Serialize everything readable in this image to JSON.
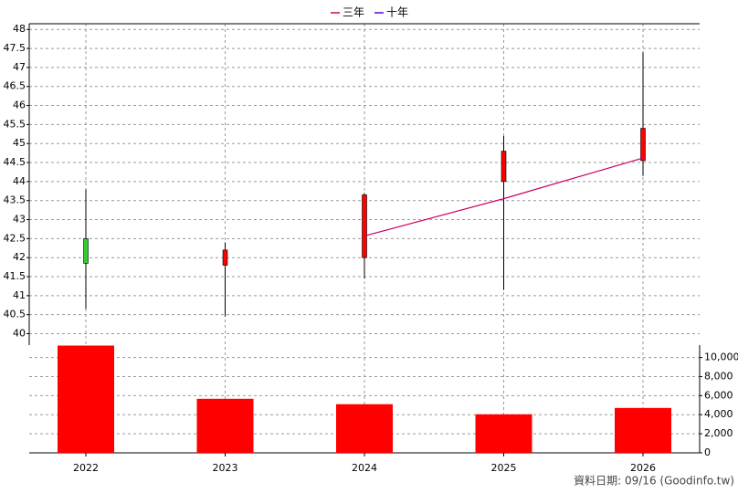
{
  "chart_data": {
    "type": "candlestick",
    "categories": [
      "2022",
      "2023",
      "2024",
      "2025",
      "2026"
    ],
    "open": [
      42.5,
      41.8,
      42.0,
      44.0,
      44.55
    ],
    "high": [
      43.8,
      42.4,
      43.7,
      45.2,
      47.4
    ],
    "low": [
      40.65,
      40.45,
      41.45,
      41.15,
      44.15
    ],
    "close": [
      41.85,
      42.2,
      43.65,
      44.8,
      45.4
    ],
    "up_color": "#ff0000",
    "down_color": "#33cc33",
    "series": [
      {
        "name": "三年",
        "color": "#cc0066",
        "values": [
          null,
          null,
          42.57,
          43.55,
          44.62
        ]
      },
      {
        "name": "十年",
        "color": "#6600cc",
        "values": [
          null,
          null,
          null,
          null,
          null
        ]
      }
    ],
    "volume": {
      "color": "#ff0000",
      "axis": "y2",
      "values": [
        11250,
        5670,
        5100,
        4040,
        4710
      ]
    },
    "ylim": [
      39.7,
      48.15
    ],
    "yticks": [
      40,
      40.5,
      41,
      41.5,
      42,
      42.5,
      43,
      43.5,
      44,
      44.5,
      45,
      45.5,
      46,
      46.5,
      47,
      47.5,
      48
    ],
    "y2lim": [
      0,
      11300
    ],
    "y2ticks": [
      0,
      {
        "value": 2000,
        "label": "2,000"
      },
      {
        "value": 4000,
        "label": "4,000"
      },
      {
        "value": 6000,
        "label": "6,000"
      },
      {
        "value": 8000,
        "label": "8,000"
      },
      {
        "value": 10000,
        "label": "10,000"
      }
    ],
    "grid": true,
    "source": "資料日期: 09/16  (Goodinfo.tw)"
  }
}
